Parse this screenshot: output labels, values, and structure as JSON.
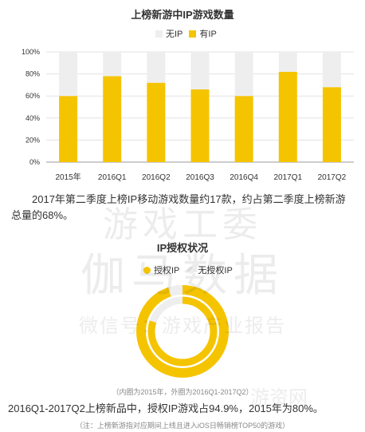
{
  "chart_data": [
    {
      "type": "bar",
      "stacked": true,
      "title": "上榜新游中IP游戏数量",
      "categories": [
        "2015年",
        "2016Q1",
        "2016Q2",
        "2016Q3",
        "2016Q4",
        "2017Q1",
        "2017Q2"
      ],
      "series": [
        {
          "name": "有IP",
          "values": [
            60,
            78,
            72,
            66,
            60,
            82,
            68
          ],
          "color": "#f5c400"
        },
        {
          "name": "无IP",
          "values": [
            40,
            22,
            28,
            34,
            40,
            18,
            32
          ],
          "color": "#eeeeee"
        }
      ],
      "yticks": [
        "0%",
        "20%",
        "40%",
        "60%",
        "80%",
        "100%"
      ],
      "ylim": [
        0,
        100
      ],
      "legend_position": "top-center",
      "grid": true
    },
    {
      "type": "pie",
      "donut": true,
      "title": "IP授权状况",
      "labels": [
        "授权IP",
        "无授权IP"
      ],
      "inner": {
        "series_label": "2015年",
        "values": [
          80,
          20
        ]
      },
      "outer": {
        "series_label": "2016Q1-2017Q2",
        "values": [
          94.9,
          5.1
        ]
      },
      "colors": [
        "#f5c400",
        "#eeeeee"
      ],
      "legend_position": "top-center"
    }
  ],
  "text": {
    "paragraph1": "2017年第二季度上榜IP移动游戏数量约17款，约占第二季度上榜新游总量的68%。",
    "pie_note": "（内圈为2015年，外圈为2016Q1-2017Q2）",
    "paragraph2": "2016Q1-2017Q2上榜新品中，授权IP游戏占94.9%，2015年为80%。",
    "footnote": "（注：上榜新游指对应期间上线且进入iOS日畅销榜TOP50的游戏）"
  },
  "watermark": {
    "line1": "游戏工委",
    "line2": "伽马数据",
    "line3": "微信号：游戏产业报告",
    "line4": "游资网"
  }
}
